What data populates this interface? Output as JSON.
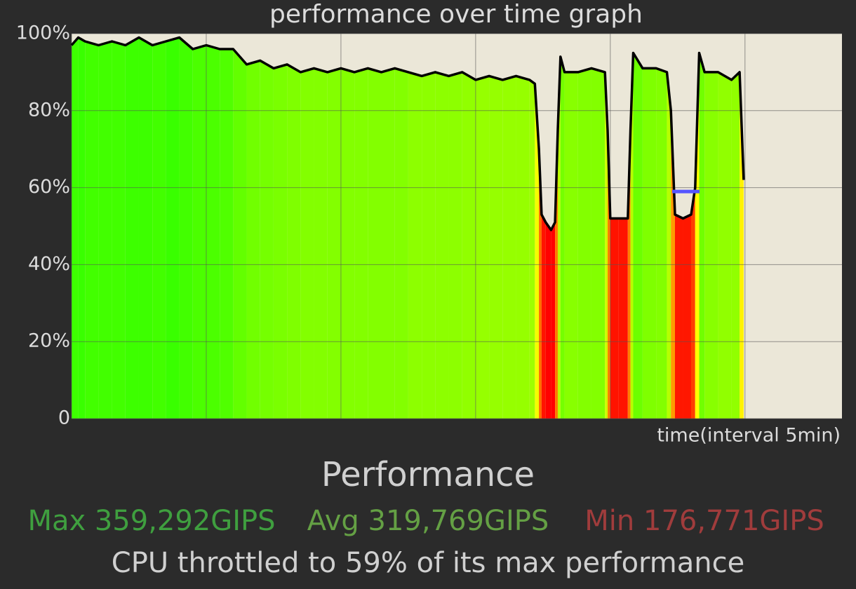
{
  "chart_data": {
    "type": "area",
    "title": "performance over time graph",
    "x_label": "time(interval 5min)",
    "x": [
      0,
      0.25,
      0.5,
      1,
      1.5,
      2,
      2.5,
      3,
      3.5,
      4,
      4.5,
      5,
      5.5,
      6,
      6.5,
      7,
      7.5,
      8,
      8.5,
      9,
      9.5,
      10,
      10.5,
      11,
      11.5,
      12,
      12.5,
      13,
      13.5,
      14,
      14.5,
      15,
      15.5,
      16,
      16.5,
      17,
      17.2,
      17.35,
      17.45,
      17.6,
      17.8,
      17.95,
      18.05,
      18.15,
      18.3,
      18.8,
      19.3,
      19.8,
      19.9,
      20,
      20.3,
      20.65,
      20.75,
      20.85,
      21.2,
      21.7,
      22.1,
      22.25,
      22.4,
      22.7,
      23,
      23.15,
      23.3,
      23.5,
      24,
      24.5,
      24.8,
      24.95
    ],
    "values": [
      97,
      99,
      98,
      97,
      98,
      97,
      99,
      97,
      98,
      99,
      96,
      97,
      96,
      96,
      92,
      93,
      91,
      92,
      90,
      91,
      90,
      91,
      90,
      91,
      90,
      91,
      90,
      89,
      90,
      89,
      90,
      88,
      89,
      88,
      89,
      88,
      87,
      70,
      53,
      51,
      49,
      51,
      75,
      94,
      90,
      90,
      91,
      90,
      75,
      52,
      52,
      52,
      75,
      95,
      91,
      91,
      90,
      80,
      53,
      52,
      53,
      60,
      95,
      90,
      90,
      88,
      90,
      62
    ],
    "xlim": [
      0,
      28.6
    ],
    "xticks": [
      0,
      5,
      10,
      15,
      20,
      25
    ],
    "ylim": [
      0,
      100
    ],
    "yticks": [
      0,
      {
        "value": 20,
        "label": "20%"
      },
      {
        "value": 40,
        "label": "40%"
      },
      {
        "value": 60,
        "label": "60%"
      },
      {
        "value": 80,
        "label": "80%"
      },
      {
        "value": 100,
        "label": "100%"
      }
    ],
    "grid": true,
    "line_color": "#000000",
    "marker_value": 59,
    "marker_color": "#5555ff",
    "heading": "Performance",
    "stats": [
      {
        "text": "Max 359,292GIPS",
        "color": "#3f9f3f"
      },
      {
        "text": "Avg 319,769GIPS",
        "color": "#64a044"
      },
      {
        "text": "Min 176,771GIPS",
        "color": "#a03c3c"
      }
    ],
    "summary": "CPU throttled to 59% of its max performance"
  }
}
